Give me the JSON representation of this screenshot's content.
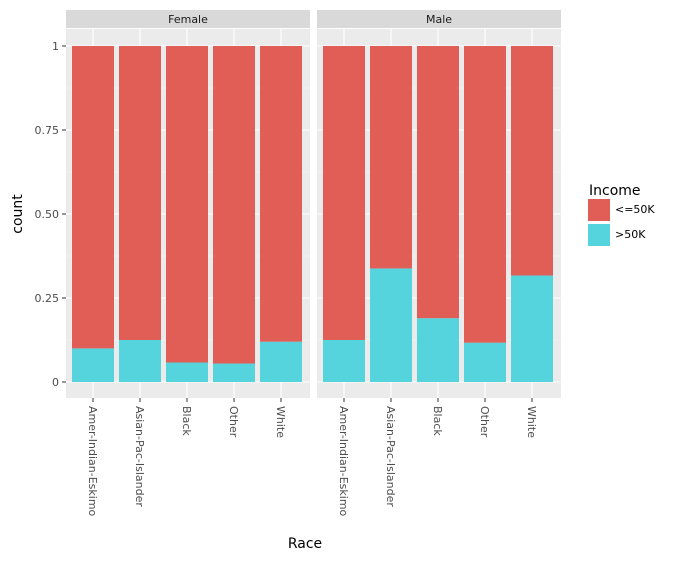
{
  "chart_data": {
    "type": "bar",
    "stacked": true,
    "facet_by": "sex",
    "xlabel": "Race",
    "ylabel": "count",
    "ylim": [
      0,
      1
    ],
    "yticks": [
      {
        "value": 0,
        "label": "0"
      },
      {
        "value": 0.25,
        "label": "0.25"
      },
      {
        "value": 0.5,
        "label": "0.50"
      },
      {
        "value": 0.75,
        "label": "0.75"
      },
      {
        "value": 1,
        "label": "1"
      }
    ],
    "categories": [
      "Amer-Indian-Eskimo",
      "Asian-Pac-Islander",
      "Black",
      "Other",
      "White"
    ],
    "legend": {
      "title": "Income",
      "position": "right",
      "entries": [
        {
          "label": "<=50K",
          "color": "#E05E56"
        },
        {
          "label": ">50K",
          "color": "#56D4DD"
        }
      ]
    },
    "facets": [
      {
        "label": "Female",
        "series": [
          {
            "name": ">50K",
            "values": [
              0.1,
              0.125,
              0.058,
              0.055,
              0.12
            ]
          },
          {
            "name": "<=50K",
            "values": [
              0.9,
              0.875,
              0.942,
              0.945,
              0.88
            ]
          }
        ]
      },
      {
        "label": "Male",
        "series": [
          {
            "name": ">50K",
            "values": [
              0.125,
              0.338,
              0.19,
              0.117,
              0.317
            ]
          },
          {
            "name": "<=50K",
            "values": [
              0.875,
              0.662,
              0.81,
              0.883,
              0.683
            ]
          }
        ]
      }
    ]
  }
}
